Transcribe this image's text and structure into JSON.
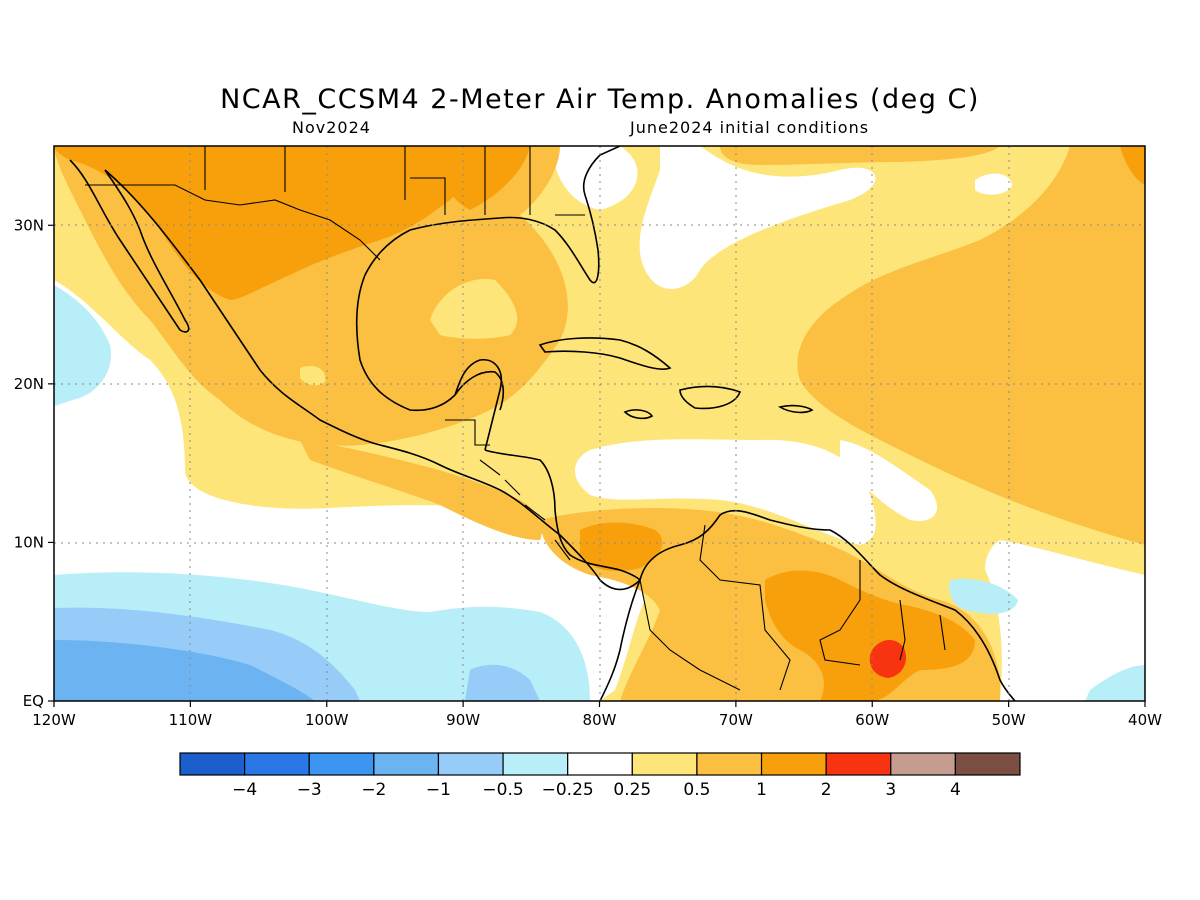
{
  "title": "NCAR_CCSM4 2-Meter Air Temp. Anomalies (deg C)",
  "subtitle_left": "Nov2024",
  "subtitle_right": "June2024 initial conditions",
  "map": {
    "lon_range": [
      -120,
      -40
    ],
    "lat_range": [
      0,
      35
    ],
    "lon_ticks": [
      {
        "value": -120,
        "label": "120W"
      },
      {
        "value": -110,
        "label": "110W"
      },
      {
        "value": -100,
        "label": "100W"
      },
      {
        "value": -90,
        "label": "90W"
      },
      {
        "value": -80,
        "label": "80W"
      },
      {
        "value": -70,
        "label": "70W"
      },
      {
        "value": -60,
        "label": "60W"
      },
      {
        "value": -50,
        "label": "50W"
      },
      {
        "value": -40,
        "label": "40W"
      }
    ],
    "lat_ticks": [
      {
        "value": 0,
        "label": "EQ"
      },
      {
        "value": 10,
        "label": "10N"
      },
      {
        "value": 20,
        "label": "20N"
      },
      {
        "value": 30,
        "label": "30N"
      }
    ],
    "gridlines": "dotted"
  },
  "colorbar": {
    "colors": [
      "#1c5fcc",
      "#2a78e8",
      "#3c95f0",
      "#6cb3f2",
      "#96ccf7",
      "#b8eef8",
      "#ffffff",
      "#fde57a",
      "#fbbf42",
      "#f8a00c",
      "#f83410",
      "#c79c90",
      "#7a4e43"
    ],
    "labels": [
      "−4",
      "−3",
      "−2",
      "−1",
      "−0.5",
      "−0.25",
      "0.25",
      "0.5",
      "1",
      "2",
      "3",
      "4"
    ]
  }
}
